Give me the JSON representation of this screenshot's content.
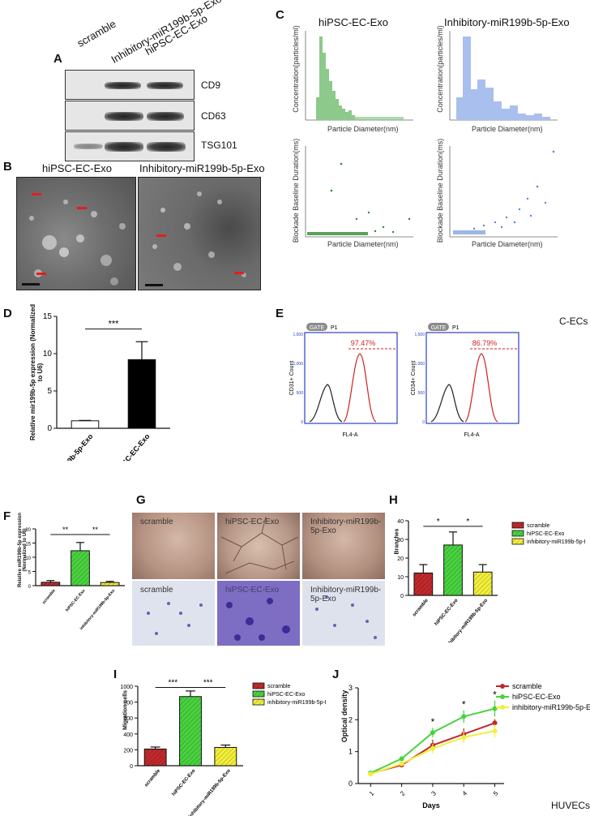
{
  "panelA": {
    "label": "A",
    "lanes": [
      "scramble",
      "Inhibitory-miR199b-5p-Exo",
      "hiPSC-EC-Exo"
    ],
    "blots": [
      "CD9",
      "CD63",
      "TSG101"
    ]
  },
  "panelB": {
    "label": "B",
    "titles": [
      "hiPSC-EC-Exo",
      "Inhibitory-miR199b-5p-Exo"
    ]
  },
  "panelC": {
    "label": "C",
    "titles": [
      "hiPSC-EC-Exo",
      "Inhibitory-miR199b-5p-Exo"
    ],
    "hist_ylabel": "Concentration(particles/ml)",
    "scatter_ylabel": "Blockade Baseline Duration(ms)",
    "xlabel": "Particle Diameter(nm)"
  },
  "panelD": {
    "label": "D",
    "sig": "***"
  },
  "panelE": {
    "label": "E",
    "gate": "GATE",
    "gate_name": "P1",
    "plots": [
      {
        "ylabel": "CD31+",
        "pct": "97.47%",
        "xlabel": "FL4-A"
      },
      {
        "ylabel": "CD34+",
        "pct": "86.79%",
        "xlabel": "FL4-A"
      }
    ],
    "count": "Count",
    "side_text": "C-ECs"
  },
  "panelF": {
    "label": "F",
    "sig1": "**",
    "sig2": "**"
  },
  "panelG": {
    "label": "G",
    "top": [
      "scramble",
      "hiPSC-EC-Exo",
      "Inhibitory-miR199b-5p-Exo"
    ],
    "bottom": [
      "scramble",
      "hiPSC-EC-Exo",
      "Inhibitory-miR199b-5p-Exo"
    ]
  },
  "panelH": {
    "label": "H",
    "sig1": "*",
    "sig2": "*"
  },
  "panelI": {
    "label": "I",
    "sig1": "***",
    "sig2": "***"
  },
  "panelJ": {
    "label": "J",
    "footer": "HUVECs"
  },
  "colors": {
    "red": "#c0292b",
    "green": "#49d23f",
    "yellow": "#f2ef3a",
    "blue_hist": "#a9c0ee",
    "green_hist": "#8cc98a"
  },
  "chart_data": [
    {
      "type": "bar",
      "id": "D",
      "categories": [
        "inhibitory-miR199b-5p-Exo",
        "hiPSC-EC-Exo"
      ],
      "values": [
        1.0,
        9.2
      ],
      "errors": [
        0.05,
        2.4
      ],
      "ylabel": "Relative mir199b-5p expression (Normalized to U6)",
      "ylim": [
        0,
        15
      ],
      "yticks": [
        0,
        5,
        10,
        15
      ],
      "bar_colors": [
        "#ffffff",
        "#000000"
      ]
    },
    {
      "type": "bar",
      "id": "F",
      "categories": [
        "scramble",
        "hiPSC-EC-Exo",
        "inhibitory-miR199b-5p-Exo"
      ],
      "values": [
        1.2,
        12.3,
        1.1
      ],
      "errors": [
        0.6,
        2.9,
        0.4
      ],
      "ylabel": "Relative miR199b-5p expression (Normalized to U6)",
      "ylim": [
        0,
        20
      ],
      "yticks": [
        0,
        5,
        10,
        15,
        20
      ]
    },
    {
      "type": "bar",
      "id": "H",
      "categories": [
        "scramble",
        "hiPSC-EC-Exo",
        "inhibitory-miR199b-5p-Exo"
      ],
      "values": [
        12,
        27,
        12.5
      ],
      "errors": [
        4.5,
        7,
        4
      ],
      "ylabel": "Branches",
      "ylim": [
        0,
        40
      ],
      "yticks": [
        0,
        10,
        20,
        30,
        40
      ],
      "legend": [
        "scramble",
        "hiPSC-EC-Exo",
        "inhibitory-miR199b-5p-Exo"
      ]
    },
    {
      "type": "bar",
      "id": "I",
      "categories": [
        "scramble",
        "hiPSC-EC-Exo",
        "inhibitory-miR199b-5p-Exo"
      ],
      "values": [
        210,
        870,
        230
      ],
      "errors": [
        25,
        70,
        30
      ],
      "ylabel": "Migration cells",
      "ylim": [
        0,
        1000
      ],
      "yticks": [
        0,
        200,
        400,
        600,
        800,
        1000
      ],
      "legend": [
        "scramble",
        "hiPSC-EC-Exo",
        "inhibitory-miR199b-5p-Exo"
      ]
    },
    {
      "type": "line",
      "id": "J",
      "x": [
        1,
        2,
        3,
        4,
        5
      ],
      "series": [
        {
          "name": "scramble",
          "values": [
            0.32,
            0.58,
            1.2,
            1.55,
            1.9
          ],
          "errors": [
            0.03,
            0.04,
            0.18,
            0.18,
            0.12
          ]
        },
        {
          "name": "hiPSC-EC-Exo",
          "values": [
            0.33,
            0.78,
            1.6,
            2.1,
            2.35
          ],
          "errors": [
            0.03,
            0.05,
            0.15,
            0.2,
            0.25
          ]
        },
        {
          "name": "inhibitory-miR199b-5p-Exo",
          "values": [
            0.3,
            0.62,
            1.1,
            1.45,
            1.65
          ],
          "errors": [
            0.03,
            0.04,
            0.15,
            0.18,
            0.2
          ]
        }
      ],
      "stars": [
        "",
        "",
        "*",
        "*",
        "*"
      ],
      "xlabel": "Days",
      "ylabel": "Optical density",
      "ylim": [
        0,
        3
      ],
      "yticks": [
        0,
        1,
        2,
        3
      ],
      "xticks": [
        1,
        2,
        3,
        4,
        5
      ]
    }
  ]
}
